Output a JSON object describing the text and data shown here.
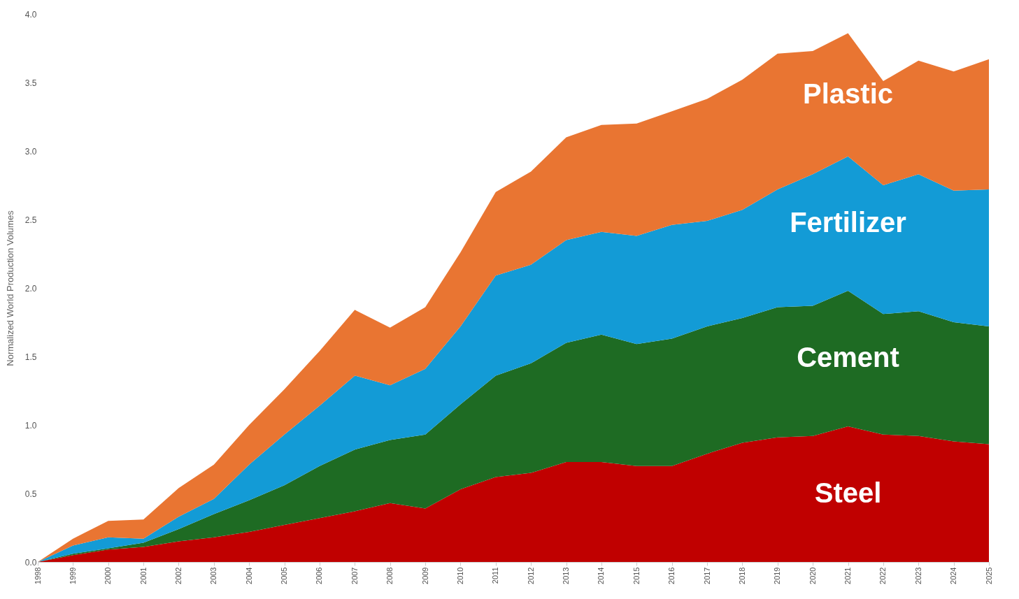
{
  "chart_data": {
    "type": "area",
    "stacked": true,
    "ylabel": "Normalized World Production Volumes",
    "categories": [
      "1998",
      "1999",
      "2000",
      "2001",
      "2002",
      "2003",
      "2004",
      "2005",
      "2006",
      "2007",
      "2008",
      "2009",
      "2010",
      "2011",
      "2012",
      "2013",
      "2014",
      "2015",
      "2016",
      "2017",
      "2018",
      "2019",
      "2020",
      "2021",
      "2022",
      "2023",
      "2024",
      "2025"
    ],
    "ylim": [
      0,
      4
    ],
    "yticks": [
      {
        "value": 0,
        "label": "0.0"
      },
      {
        "value": 0.5,
        "label": "0.5"
      },
      {
        "value": 1,
        "label": "1.0"
      },
      {
        "value": 1.5,
        "label": "1.5"
      },
      {
        "value": 2,
        "label": "2.0"
      },
      {
        "value": 2.5,
        "label": "2.5"
      },
      {
        "value": 3,
        "label": "3.0"
      },
      {
        "value": 3.5,
        "label": "3.5"
      },
      {
        "value": 4,
        "label": "4.0"
      }
    ],
    "grid": false,
    "legend": false,
    "series": [
      {
        "name": "Steel",
        "color": "#c00000",
        "values": [
          0,
          0.05,
          0.09,
          0.11,
          0.15,
          0.18,
          0.22,
          0.27,
          0.32,
          0.37,
          0.43,
          0.39,
          0.53,
          0.62,
          0.65,
          0.73,
          0.73,
          0.7,
          0.7,
          0.79,
          0.87,
          0.91,
          0.92,
          0.99,
          0.93,
          0.92,
          0.88,
          0.86
        ]
      },
      {
        "name": "Cement",
        "color": "#1e6b23",
        "values": [
          0,
          0.01,
          0.01,
          0.03,
          0.09,
          0.17,
          0.23,
          0.29,
          0.38,
          0.45,
          0.46,
          0.54,
          0.62,
          0.74,
          0.8,
          0.87,
          0.93,
          0.89,
          0.93,
          0.93,
          0.91,
          0.95,
          0.95,
          0.99,
          0.88,
          0.91,
          0.87,
          0.86
        ]
      },
      {
        "name": "Fertilizer",
        "color": "#139bd6",
        "values": [
          0,
          0.06,
          0.08,
          0.03,
          0.09,
          0.11,
          0.26,
          0.37,
          0.44,
          0.54,
          0.4,
          0.48,
          0.57,
          0.73,
          0.72,
          0.75,
          0.75,
          0.79,
          0.83,
          0.77,
          0.79,
          0.86,
          0.96,
          0.98,
          0.94,
          1.0,
          0.96,
          1.0
        ]
      },
      {
        "name": "Plastic",
        "color": "#e97532",
        "values": [
          0,
          0.05,
          0.12,
          0.14,
          0.21,
          0.25,
          0.29,
          0.33,
          0.4,
          0.48,
          0.42,
          0.45,
          0.54,
          0.61,
          0.68,
          0.75,
          0.78,
          0.82,
          0.83,
          0.89,
          0.95,
          0.99,
          0.9,
          0.9,
          0.76,
          0.83,
          0.87,
          0.95
        ]
      }
    ]
  }
}
